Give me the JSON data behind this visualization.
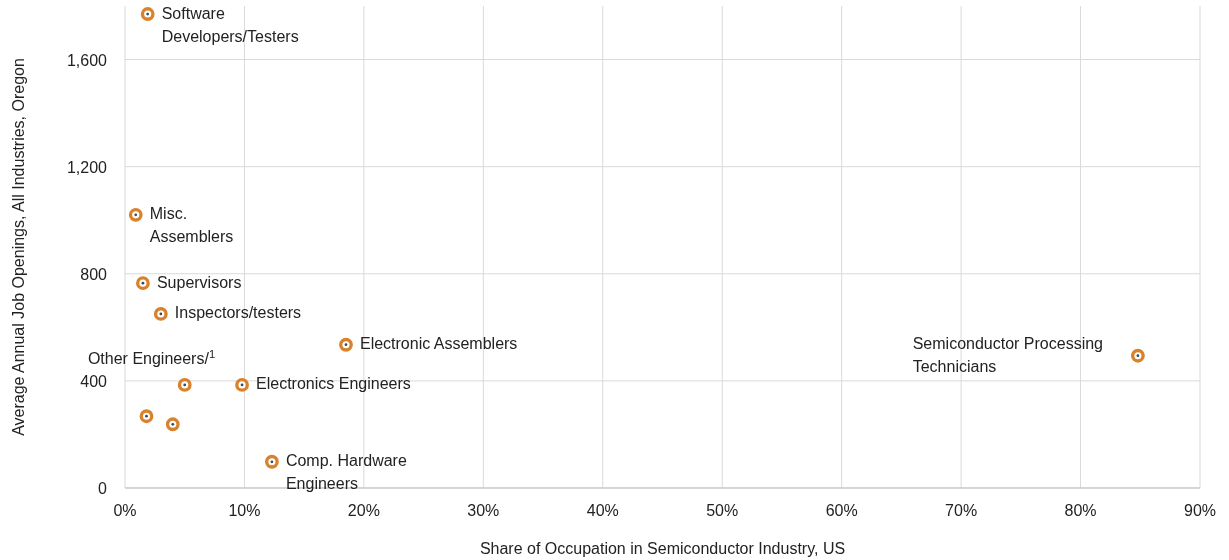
{
  "chart_data": {
    "type": "scatter",
    "xlabel": "Share of Occupation in Semiconductor Industry, US",
    "ylabel": "Average Annual Job Openings, All Industries, Oregon",
    "xlim": [
      0,
      90
    ],
    "xticks": [
      {
        "value": 0,
        "label": "0%"
      },
      {
        "value": 10,
        "label": "10%"
      },
      {
        "value": 20,
        "label": "20%"
      },
      {
        "value": 30,
        "label": "30%"
      },
      {
        "value": 40,
        "label": "40%"
      },
      {
        "value": 50,
        "label": "50%"
      },
      {
        "value": 60,
        "label": "60%"
      },
      {
        "value": 70,
        "label": "70%"
      },
      {
        "value": 80,
        "label": "80%"
      },
      {
        "value": 90,
        "label": "90%"
      }
    ],
    "ylim": [
      0,
      1800
    ],
    "yticks": [
      0,
      {
        "value": 400,
        "label": "400"
      },
      {
        "value": 800,
        "label": "800"
      },
      {
        "value": 1200,
        "label": "1,200"
      },
      {
        "value": 1600,
        "label": "1,600"
      }
    ],
    "grid": true,
    "marker": "circle",
    "series": [
      {
        "color": "#d9822b",
        "x": [
          1.9,
          0.9,
          1.5,
          3.0,
          18.5,
          5.0,
          9.8,
          1.8,
          4.0,
          12.3,
          84.8
        ],
        "values": [
          1770,
          1020,
          765,
          650,
          535,
          385,
          385,
          268,
          238,
          98,
          494
        ]
      }
    ],
    "annotations": [
      {
        "text": "Software\nDevelopers/Testers",
        "x": 1.9,
        "y": 1770
      },
      {
        "text": "Misc.\nAssemblers",
        "x": 0.9,
        "y": 1020
      },
      {
        "text": "Supervisors",
        "x": 1.5,
        "y": 765
      },
      {
        "text": "Inspectors/testers",
        "x": 3.0,
        "y": 650
      },
      {
        "text": "Electronic Assemblers",
        "x": 18.5,
        "y": 535
      },
      {
        "text": "Other Engineers/$^{1}$",
        "x": 5.0,
        "y": 385
      },
      {
        "text": "Electronics Engineers",
        "x": 9.8,
        "y": 385
      },
      {
        "text": "Comp. Hardware\nEngineers",
        "x": 12.3,
        "y": 98
      },
      {
        "text": "Semiconductor Processing\nTechnicians",
        "x": 84.8,
        "y": 494
      }
    ]
  }
}
